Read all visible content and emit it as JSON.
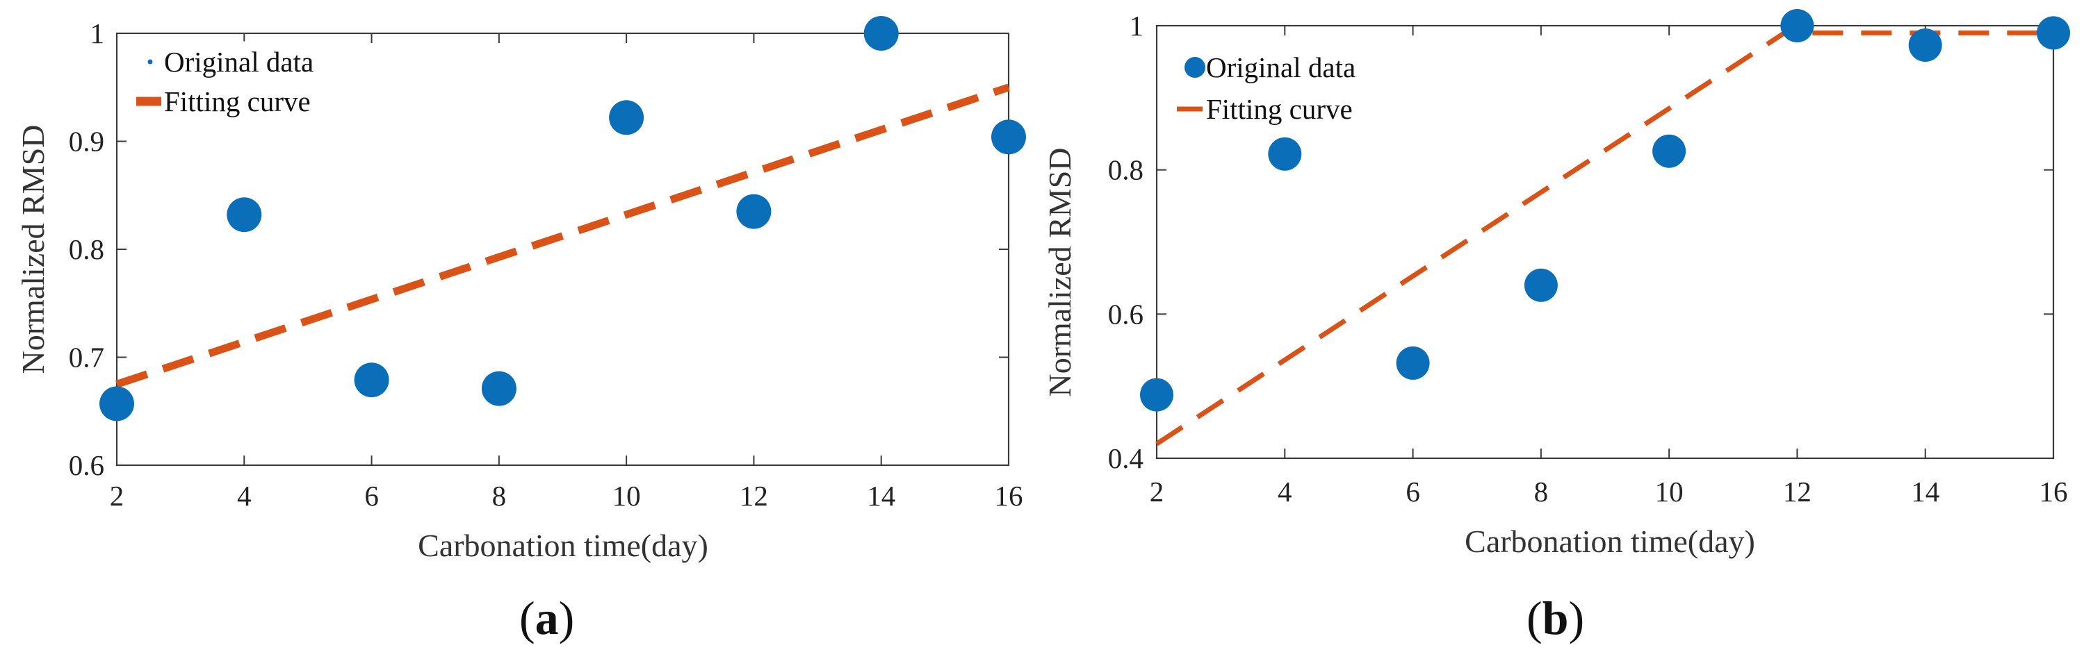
{
  "colors": {
    "marker": "#0a6fb8",
    "fit": "#d95319",
    "axis": "#3a3a3a"
  },
  "chart_data": [
    {
      "type": "scatter",
      "panel_label": {
        "open": "(",
        "letter": "a",
        "close": ")"
      },
      "xlabel": "Carbonation time(day)",
      "ylabel": "Normalized RMSD",
      "xlim": [
        2,
        16
      ],
      "ylim": [
        0.6,
        1.0
      ],
      "xticks": [
        2,
        4,
        6,
        8,
        10,
        12,
        14,
        16
      ],
      "yticks": [
        0.6,
        0.7,
        0.8,
        0.9,
        1.0
      ],
      "ytick_labels": [
        "0.6",
        "0.7",
        "0.8",
        "0.9",
        "1"
      ],
      "grid": false,
      "legend": {
        "position": "top-left",
        "entries": [
          "Original data",
          "Fitting curve"
        ]
      },
      "series": [
        {
          "name": "Original data",
          "kind": "markers",
          "x": [
            2,
            4,
            6,
            8,
            10,
            12,
            14,
            16
          ],
          "y": [
            0.657,
            0.832,
            0.679,
            0.671,
            0.922,
            0.835,
            1.0,
            0.904
          ]
        },
        {
          "name": "Fitting curve",
          "kind": "dashed-line",
          "x": [
            2,
            16
          ],
          "y": [
            0.675,
            0.95
          ]
        }
      ]
    },
    {
      "type": "scatter",
      "panel_label": {
        "open": "(",
        "letter": "b",
        "close": ")"
      },
      "xlabel": "Carbonation time(day)",
      "ylabel": "Normalized RMSD",
      "xlim": [
        2,
        16
      ],
      "ylim": [
        0.4,
        1.0
      ],
      "xticks": [
        2,
        4,
        6,
        8,
        10,
        12,
        14,
        16
      ],
      "yticks": [
        0.4,
        0.6,
        0.8,
        1.0
      ],
      "ytick_labels": [
        "0.4",
        "0.6",
        "0.8",
        "1"
      ],
      "grid": false,
      "legend": {
        "position": "top-left",
        "entries": [
          "Original data",
          "Fitting curve"
        ]
      },
      "series": [
        {
          "name": "Original data",
          "kind": "markers",
          "x": [
            2,
            4,
            6,
            8,
            10,
            12,
            14,
            16
          ],
          "y": [
            0.488,
            0.822,
            0.532,
            0.64,
            0.826,
            1.0,
            0.973,
            0.99
          ]
        },
        {
          "name": "Fitting curve",
          "kind": "dashed-line",
          "x": [
            2,
            11.8,
            12,
            16
          ],
          "y": [
            0.42,
            0.99,
            0.99,
            0.99
          ]
        }
      ]
    }
  ]
}
